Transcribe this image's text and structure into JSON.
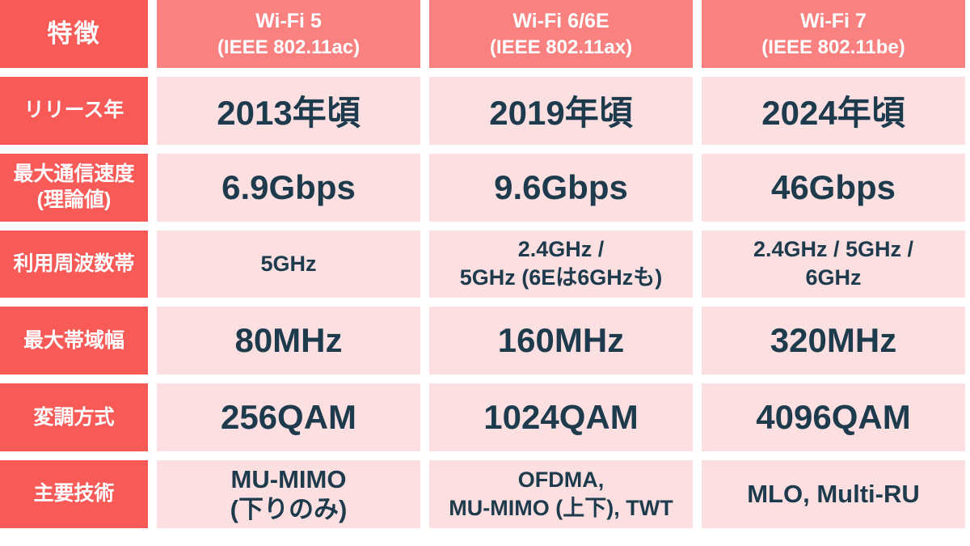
{
  "colors": {
    "row_header_bg": "#f85b57",
    "column_header_bg": "#f98180",
    "data_cell_bg": "#fbdfe1",
    "data_text": "#1d3b4c",
    "header_text": "#ffffff",
    "gap": "#ffffff"
  },
  "chart_data": {
    "type": "table",
    "corner_header": "特徴",
    "columns": [
      {
        "name": "Wi-Fi 5",
        "ieee": "(IEEE 802.11ac)"
      },
      {
        "name": "Wi-Fi 6/6E",
        "ieee": "(IEEE 802.11ax)"
      },
      {
        "name": "Wi-Fi 7",
        "ieee": "(IEEE 802.11be)"
      }
    ],
    "rows": [
      {
        "label": "リリース年",
        "values": [
          "2013年頃",
          "2019年頃",
          "2024年頃"
        ]
      },
      {
        "label": "最大通信速度\n(理論値)",
        "values": [
          "6.9Gbps",
          "9.6Gbps",
          "46Gbps"
        ]
      },
      {
        "label": "利用周波数帯",
        "values": [
          "5GHz",
          "2.4GHz /\n5GHz (6Eは6GHzも)",
          "2.4GHz / 5GHz /\n6GHz"
        ]
      },
      {
        "label": "最大帯域幅",
        "values": [
          "80MHz",
          "160MHz",
          "320MHz"
        ]
      },
      {
        "label": "変調方式",
        "values": [
          "256QAM",
          "1024QAM",
          "4096QAM"
        ]
      },
      {
        "label": "主要技術",
        "values": [
          "MU-MIMO\n(下りのみ)",
          "OFDMA,\nMU-MIMO (上下), TWT",
          "MLO, Multi-RU"
        ]
      }
    ]
  }
}
